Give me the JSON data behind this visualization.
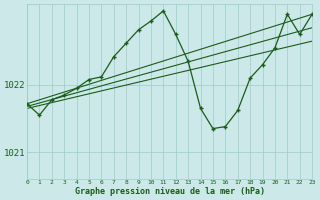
{
  "background_color": "#cce8e8",
  "plot_bg_color": "#cce8e8",
  "grid_color": "#99cccc",
  "line_color": "#1a5c1a",
  "title": "Graphe pression niveau de la mer (hPa)",
  "xlim": [
    0,
    23
  ],
  "ylim": [
    1020.6,
    1023.2
  ],
  "yticks": [
    1021,
    1022
  ],
  "xticks": [
    0,
    1,
    2,
    3,
    4,
    5,
    6,
    7,
    8,
    9,
    10,
    11,
    12,
    13,
    14,
    15,
    16,
    17,
    18,
    19,
    20,
    21,
    22,
    23
  ],
  "series_trend1": {
    "x": [
      0,
      23
    ],
    "y": [
      1021.72,
      1023.05
    ]
  },
  "series_trend2": {
    "x": [
      0,
      23
    ],
    "y": [
      1021.68,
      1022.85
    ]
  },
  "series_trend3": {
    "x": [
      0,
      23
    ],
    "y": [
      1021.65,
      1022.65
    ]
  },
  "series_main": {
    "x": [
      0,
      1,
      2,
      3,
      4,
      5,
      6,
      7,
      8,
      9,
      10,
      11,
      12,
      13,
      14,
      15,
      16,
      17,
      18,
      19,
      20,
      21,
      22,
      23
    ],
    "y": [
      1021.72,
      1021.55,
      1021.78,
      1021.85,
      1021.95,
      1022.08,
      1022.12,
      1022.42,
      1022.62,
      1022.82,
      1022.95,
      1023.1,
      1022.75,
      1022.35,
      1021.65,
      1021.35,
      1021.38,
      1021.62,
      1022.1,
      1022.3,
      1022.55,
      1023.05,
      1022.75,
      1023.05
    ]
  }
}
